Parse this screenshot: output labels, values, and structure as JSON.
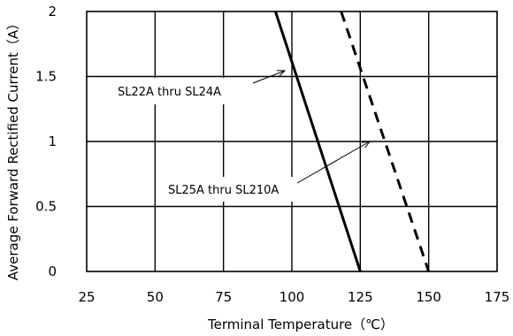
{
  "chart_data": {
    "type": "line",
    "xlabel": "Terminal Temperature（℃）",
    "ylabel": "Average Forward Rectified Current（A）",
    "xlim": [
      25,
      175
    ],
    "ylim": [
      0,
      2
    ],
    "x_ticks": [
      "25",
      "50",
      "75",
      "100",
      "125",
      "150",
      "175"
    ],
    "y_ticks": [
      "0",
      "0.5",
      "1",
      "1.5",
      "2"
    ],
    "grid": true,
    "series": [
      {
        "name": "SL22A thru SL24A",
        "style": "solid",
        "x": [
          94,
          125
        ],
        "y": [
          2,
          0
        ]
      },
      {
        "name": "SL25A thru SL210A",
        "style": "dashed",
        "x": [
          118,
          150
        ],
        "y": [
          2,
          0
        ]
      }
    ],
    "annotations": [
      {
        "text": "SL22A thru SL24A",
        "series": 0
      },
      {
        "text": "SL25A thru SL210A",
        "series": 1
      }
    ]
  }
}
